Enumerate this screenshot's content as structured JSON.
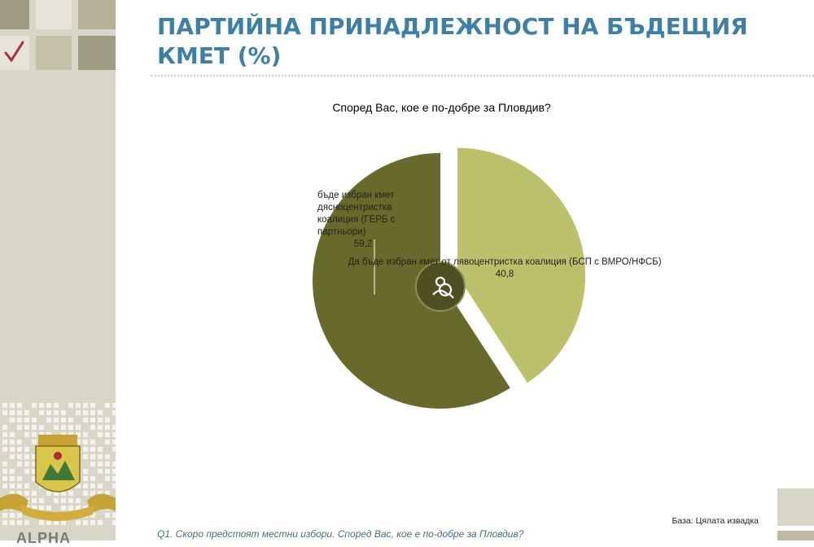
{
  "page": {
    "title": "ПАРТИЙНА ПРИНАДЛЕЖНОСТ НА БЪДЕЩИЯ КМЕТ (%)",
    "base_note": "База: Цялата извадка",
    "question_footer": "Q1. Скоро предстоят местни избори. Според Вас, кое е по-добре за Пловдив?",
    "logo_text": "ALPHA"
  },
  "colors": {
    "accent_title": "#3d7fa6",
    "slice_dark": "#68692a",
    "slice_light": "#bcc06a",
    "checkmark": "#b02a3a"
  },
  "icons": {
    "center": "poll-person-icon",
    "sidebar": "checkmark-icon",
    "crest": "plovdiv-crest-icon"
  },
  "chart_data": {
    "type": "pie",
    "title": "Според Вас, кое е по-добре за Пловдив?",
    "slices": [
      {
        "label": "Да бъде избран кмет от дясноцентристка коалиция (ГЕРБ с партньори)",
        "label_display": "бъде избран кмет\nдясноцентристка\nкоалиция (ГЕРБ с\nпартньори)",
        "value": 59.2,
        "value_label": "59,2",
        "color": "#68692a"
      },
      {
        "label": "Да бъде избран кмет от лявоцентристка коалиция (БСП с ВМРО/НФСБ)",
        "value": 40.8,
        "value_label": "40,8",
        "color": "#bcc06a"
      }
    ],
    "legend": "none"
  }
}
